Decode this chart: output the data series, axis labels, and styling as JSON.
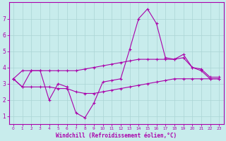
{
  "background_color": "#c8ecec",
  "grid_color": "#aad4d4",
  "line_color": "#aa00aa",
  "xlabel": "Windchill (Refroidissement éolien,°C)",
  "ylim": [
    0.5,
    8.0
  ],
  "xlim": [
    -0.5,
    23.5
  ],
  "yticks": [
    1,
    2,
    3,
    4,
    5,
    6,
    7
  ],
  "xticks": [
    0,
    1,
    2,
    3,
    4,
    5,
    6,
    7,
    8,
    9,
    10,
    11,
    12,
    13,
    14,
    15,
    16,
    17,
    18,
    19,
    20,
    21,
    22,
    23
  ],
  "line_wavy_x": [
    0,
    1,
    2,
    3,
    4,
    5,
    6,
    7,
    8,
    9,
    10,
    11,
    12,
    13,
    14,
    15,
    16,
    17,
    18,
    19,
    20,
    21,
    22,
    23
  ],
  "line_wavy_y": [
    3.3,
    2.8,
    3.8,
    3.8,
    2.0,
    3.0,
    2.8,
    1.2,
    0.9,
    1.8,
    3.1,
    3.2,
    3.3,
    5.1,
    7.0,
    7.6,
    6.7,
    4.6,
    4.5,
    4.8,
    4.0,
    3.8,
    3.3,
    3.3
  ],
  "line_upper_x": [
    0,
    1,
    2,
    3,
    4,
    5,
    6,
    7,
    8,
    9,
    10,
    11,
    12,
    13,
    14,
    15,
    16,
    17,
    18,
    19,
    20,
    21,
    22,
    23
  ],
  "line_upper_y": [
    3.3,
    3.8,
    3.8,
    3.8,
    3.8,
    3.8,
    3.8,
    3.8,
    3.9,
    4.0,
    4.1,
    4.2,
    4.3,
    4.4,
    4.5,
    4.5,
    4.5,
    4.5,
    4.5,
    4.6,
    4.0,
    3.9,
    3.4,
    3.4
  ],
  "line_lower_x": [
    0,
    1,
    2,
    3,
    4,
    5,
    6,
    7,
    8,
    9,
    10,
    11,
    12,
    13,
    14,
    15,
    16,
    17,
    18,
    19,
    20,
    21,
    22,
    23
  ],
  "line_lower_y": [
    3.3,
    2.8,
    2.8,
    2.8,
    2.8,
    2.7,
    2.7,
    2.5,
    2.4,
    2.4,
    2.5,
    2.6,
    2.7,
    2.8,
    2.9,
    3.0,
    3.1,
    3.2,
    3.3,
    3.3,
    3.3,
    3.3,
    3.3,
    3.3
  ]
}
